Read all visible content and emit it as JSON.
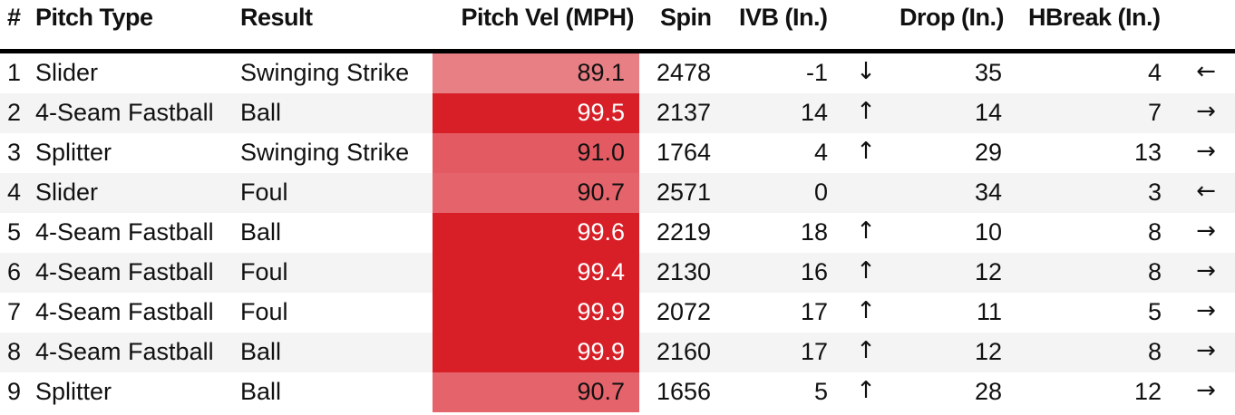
{
  "headers": {
    "num": "#",
    "pitch_type": "Pitch Type",
    "result": "Result",
    "pitch_vel": "Pitch Vel (MPH)",
    "spin": "Spin",
    "ivb": "IVB (In.)",
    "drop": "Drop (In.)",
    "hbreak": "HBreak (In.)"
  },
  "rows": [
    {
      "num": "1",
      "pitch_type": "Slider",
      "result": "Swinging Strike",
      "vel": "89.1",
      "spin": "2478",
      "ivb": "-1",
      "ivb_arrow": "↓",
      "drop": "35",
      "hbreak": "4",
      "hb_arrow": "←",
      "vel_color": "#e87f85",
      "vel_text_color": "#111111"
    },
    {
      "num": "2",
      "pitch_type": "4-Seam Fastball",
      "result": "Ball",
      "vel": "99.5",
      "spin": "2137",
      "ivb": "14",
      "ivb_arrow": "↑",
      "drop": "14",
      "hbreak": "7",
      "hb_arrow": "→",
      "vel_color": "#d81f27",
      "vel_text_color": "#ffffff"
    },
    {
      "num": "3",
      "pitch_type": "Splitter",
      "result": "Swinging Strike",
      "vel": "91.0",
      "spin": "1764",
      "ivb": "4",
      "ivb_arrow": "↑",
      "drop": "29",
      "hbreak": "13",
      "hb_arrow": "→",
      "vel_color": "#e45a62",
      "vel_text_color": "#111111"
    },
    {
      "num": "4",
      "pitch_type": "Slider",
      "result": "Foul",
      "vel": "90.7",
      "spin": "2571",
      "ivb": "0",
      "ivb_arrow": "",
      "drop": "34",
      "hbreak": "3",
      "hb_arrow": "←",
      "vel_color": "#e5636a",
      "vel_text_color": "#111111"
    },
    {
      "num": "5",
      "pitch_type": "4-Seam Fastball",
      "result": "Ball",
      "vel": "99.6",
      "spin": "2219",
      "ivb": "18",
      "ivb_arrow": "↑",
      "drop": "10",
      "hbreak": "8",
      "hb_arrow": "→",
      "vel_color": "#d81f27",
      "vel_text_color": "#ffffff"
    },
    {
      "num": "6",
      "pitch_type": "4-Seam Fastball",
      "result": "Foul",
      "vel": "99.4",
      "spin": "2130",
      "ivb": "16",
      "ivb_arrow": "↑",
      "drop": "12",
      "hbreak": "8",
      "hb_arrow": "→",
      "vel_color": "#d81f27",
      "vel_text_color": "#ffffff"
    },
    {
      "num": "7",
      "pitch_type": "4-Seam Fastball",
      "result": "Foul",
      "vel": "99.9",
      "spin": "2072",
      "ivb": "17",
      "ivb_arrow": "↑",
      "drop": "11",
      "hbreak": "5",
      "hb_arrow": "→",
      "vel_color": "#d81f27",
      "vel_text_color": "#ffffff"
    },
    {
      "num": "8",
      "pitch_type": "4-Seam Fastball",
      "result": "Ball",
      "vel": "99.9",
      "spin": "2160",
      "ivb": "17",
      "ivb_arrow": "↑",
      "drop": "12",
      "hbreak": "8",
      "hb_arrow": "→",
      "vel_color": "#d81f27",
      "vel_text_color": "#ffffff"
    },
    {
      "num": "9",
      "pitch_type": "Splitter",
      "result": "Ball",
      "vel": "90.7",
      "spin": "1656",
      "ivb": "5",
      "ivb_arrow": "↑",
      "drop": "28",
      "hbreak": "12",
      "hb_arrow": "→",
      "vel_color": "#e5636a",
      "vel_text_color": "#111111"
    }
  ]
}
